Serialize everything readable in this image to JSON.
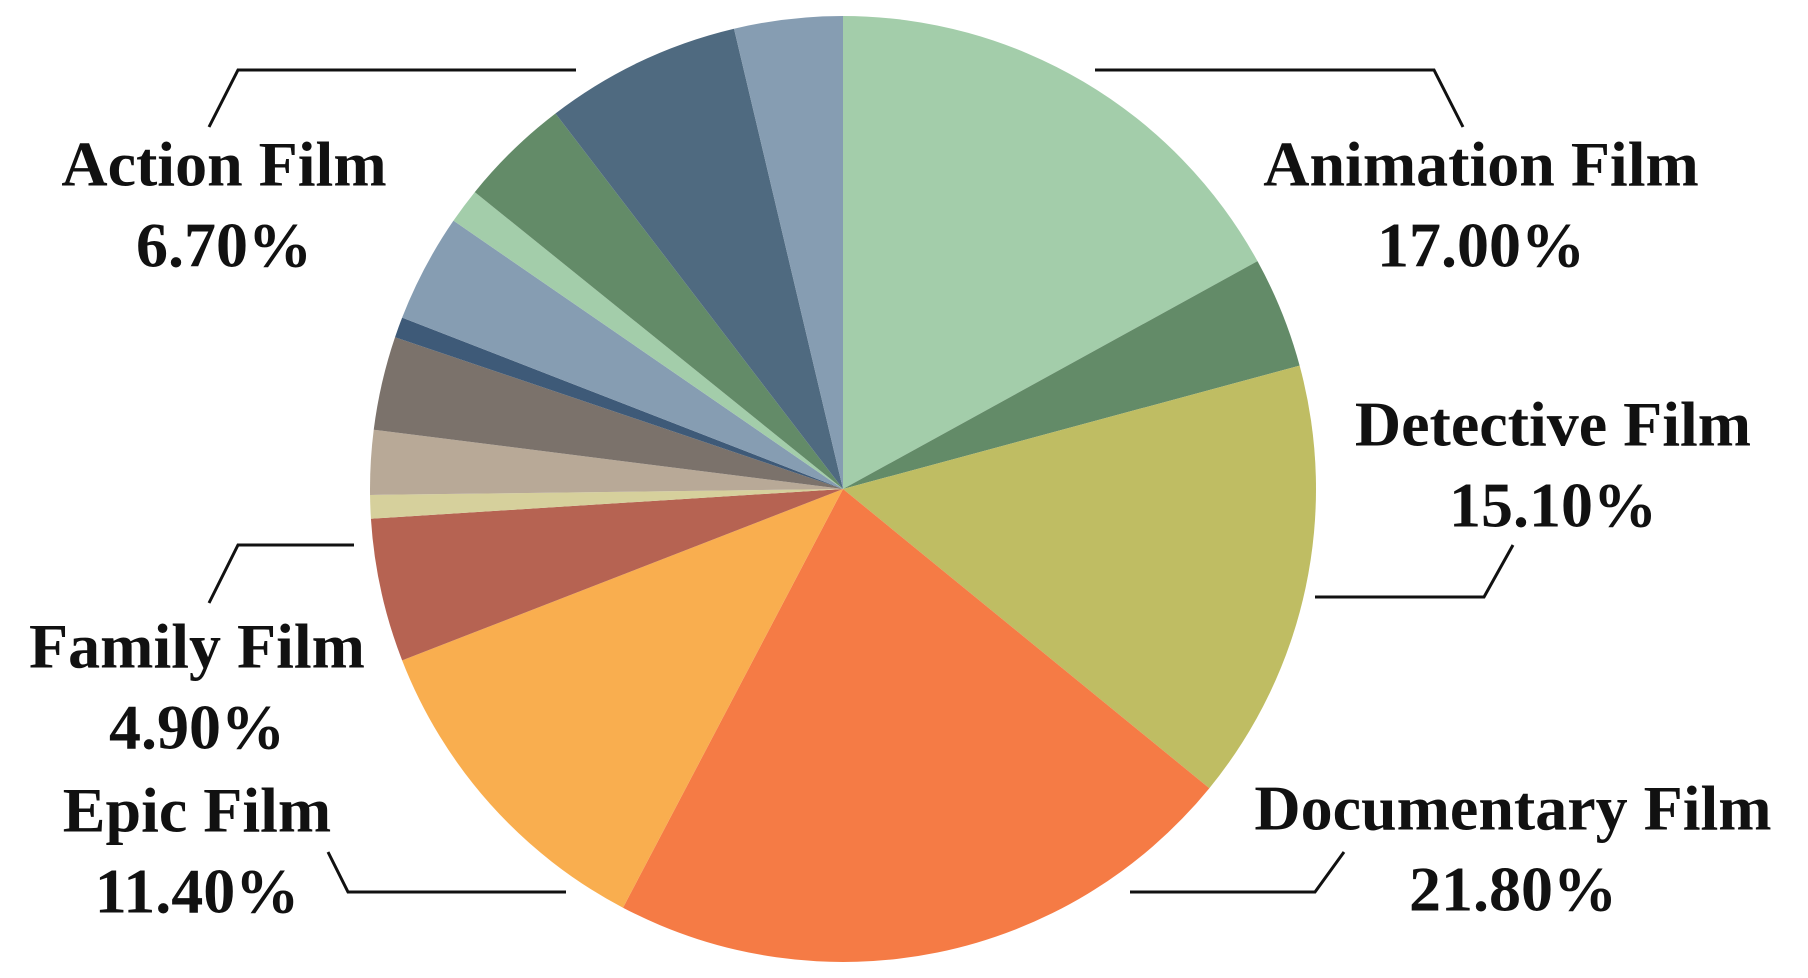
{
  "chart_data": {
    "type": "pie",
    "categories": [
      "Animation Film",
      null,
      "Detective Film",
      "Documentary Film",
      "Epic Film",
      "Family Film",
      null,
      null,
      null,
      null,
      null,
      null,
      null,
      "Action Film",
      null
    ],
    "values": [
      17.0,
      3.8,
      15.1,
      21.8,
      11.4,
      4.9,
      0.8,
      2.2,
      3.2,
      0.7,
      3.7,
      1.2,
      3.8,
      6.7,
      3.7
    ],
    "value_labels": [
      "17.00%",
      null,
      "15.10%",
      "21.80%",
      "11.40%",
      "4.90%",
      null,
      null,
      null,
      null,
      null,
      null,
      null,
      "6.70%",
      null
    ],
    "colors": [
      "#a3cdaa",
      "#638b68",
      "#bfbd63",
      "#f57b45",
      "#f9ae4f",
      "#b66352",
      "#d6d09c",
      "#b8a997",
      "#7b726b",
      "#3e5a78",
      "#869db2",
      "#a3cdaa",
      "#638b68",
      "#4f6a80",
      "#869db2"
    ]
  }
}
